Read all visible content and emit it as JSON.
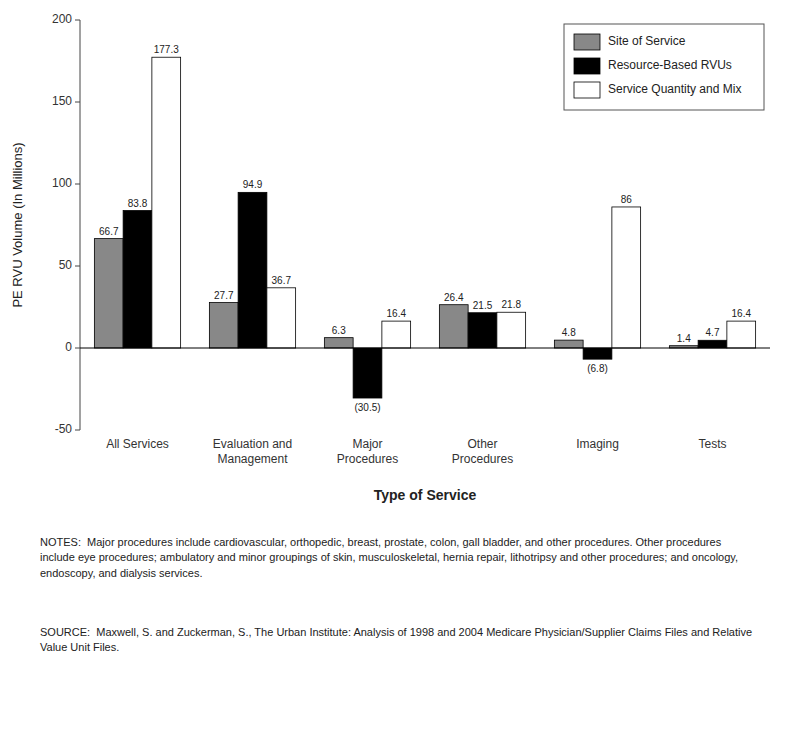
{
  "chart_data": {
    "type": "bar",
    "categories": [
      "All Services",
      "Evaluation and\nManagement",
      "Major\nProcedures",
      "Other\nProcedures",
      "Imaging",
      "Tests"
    ],
    "series": [
      {
        "name": "Site of Service",
        "color": "#888888",
        "values": [
          66.7,
          27.7,
          6.3,
          26.4,
          4.8,
          1.4
        ]
      },
      {
        "name": "Resource-Based RVUs",
        "color": "#000000",
        "values": [
          83.8,
          94.9,
          -30.5,
          21.5,
          -6.8,
          4.7
        ],
        "value_labels": [
          "83.8",
          "94.9",
          "(30.5)",
          "21.5",
          "(6.8)",
          "4.7"
        ]
      },
      {
        "name": "Service Quantity and Mix",
        "color": "#ffffff",
        "values": [
          177.3,
          36.7,
          16.4,
          21.8,
          86.0,
          16.4
        ]
      }
    ],
    "y_label": "PE RVU Volume (In Millions)",
    "x_label": "Type of Service",
    "ylim": [
      -50,
      200
    ],
    "yticks": [
      -50,
      0,
      50,
      100,
      150,
      200
    ],
    "grid": false,
    "legend": "upper right",
    "data_labels": true,
    "annotations": [
      "NOTES:  Major procedures include cardiovascular, orthopedic, breast, prostate, colon, gall bladder, and other procedures. Other procedures include eye procedures; ambulatory and minor groupings of skin, musculoskeletal, hernia repair, lithotripsy and other procedures; and oncology, endoscopy, and dialysis services.",
      "SOURCE:  Maxwell, S. and Zuckerman, S., The Urban Institute: Analysis of 1998 and 2004 Medicare Physician/Supplier Claims Files and Relative Value Unit Files."
    ]
  }
}
